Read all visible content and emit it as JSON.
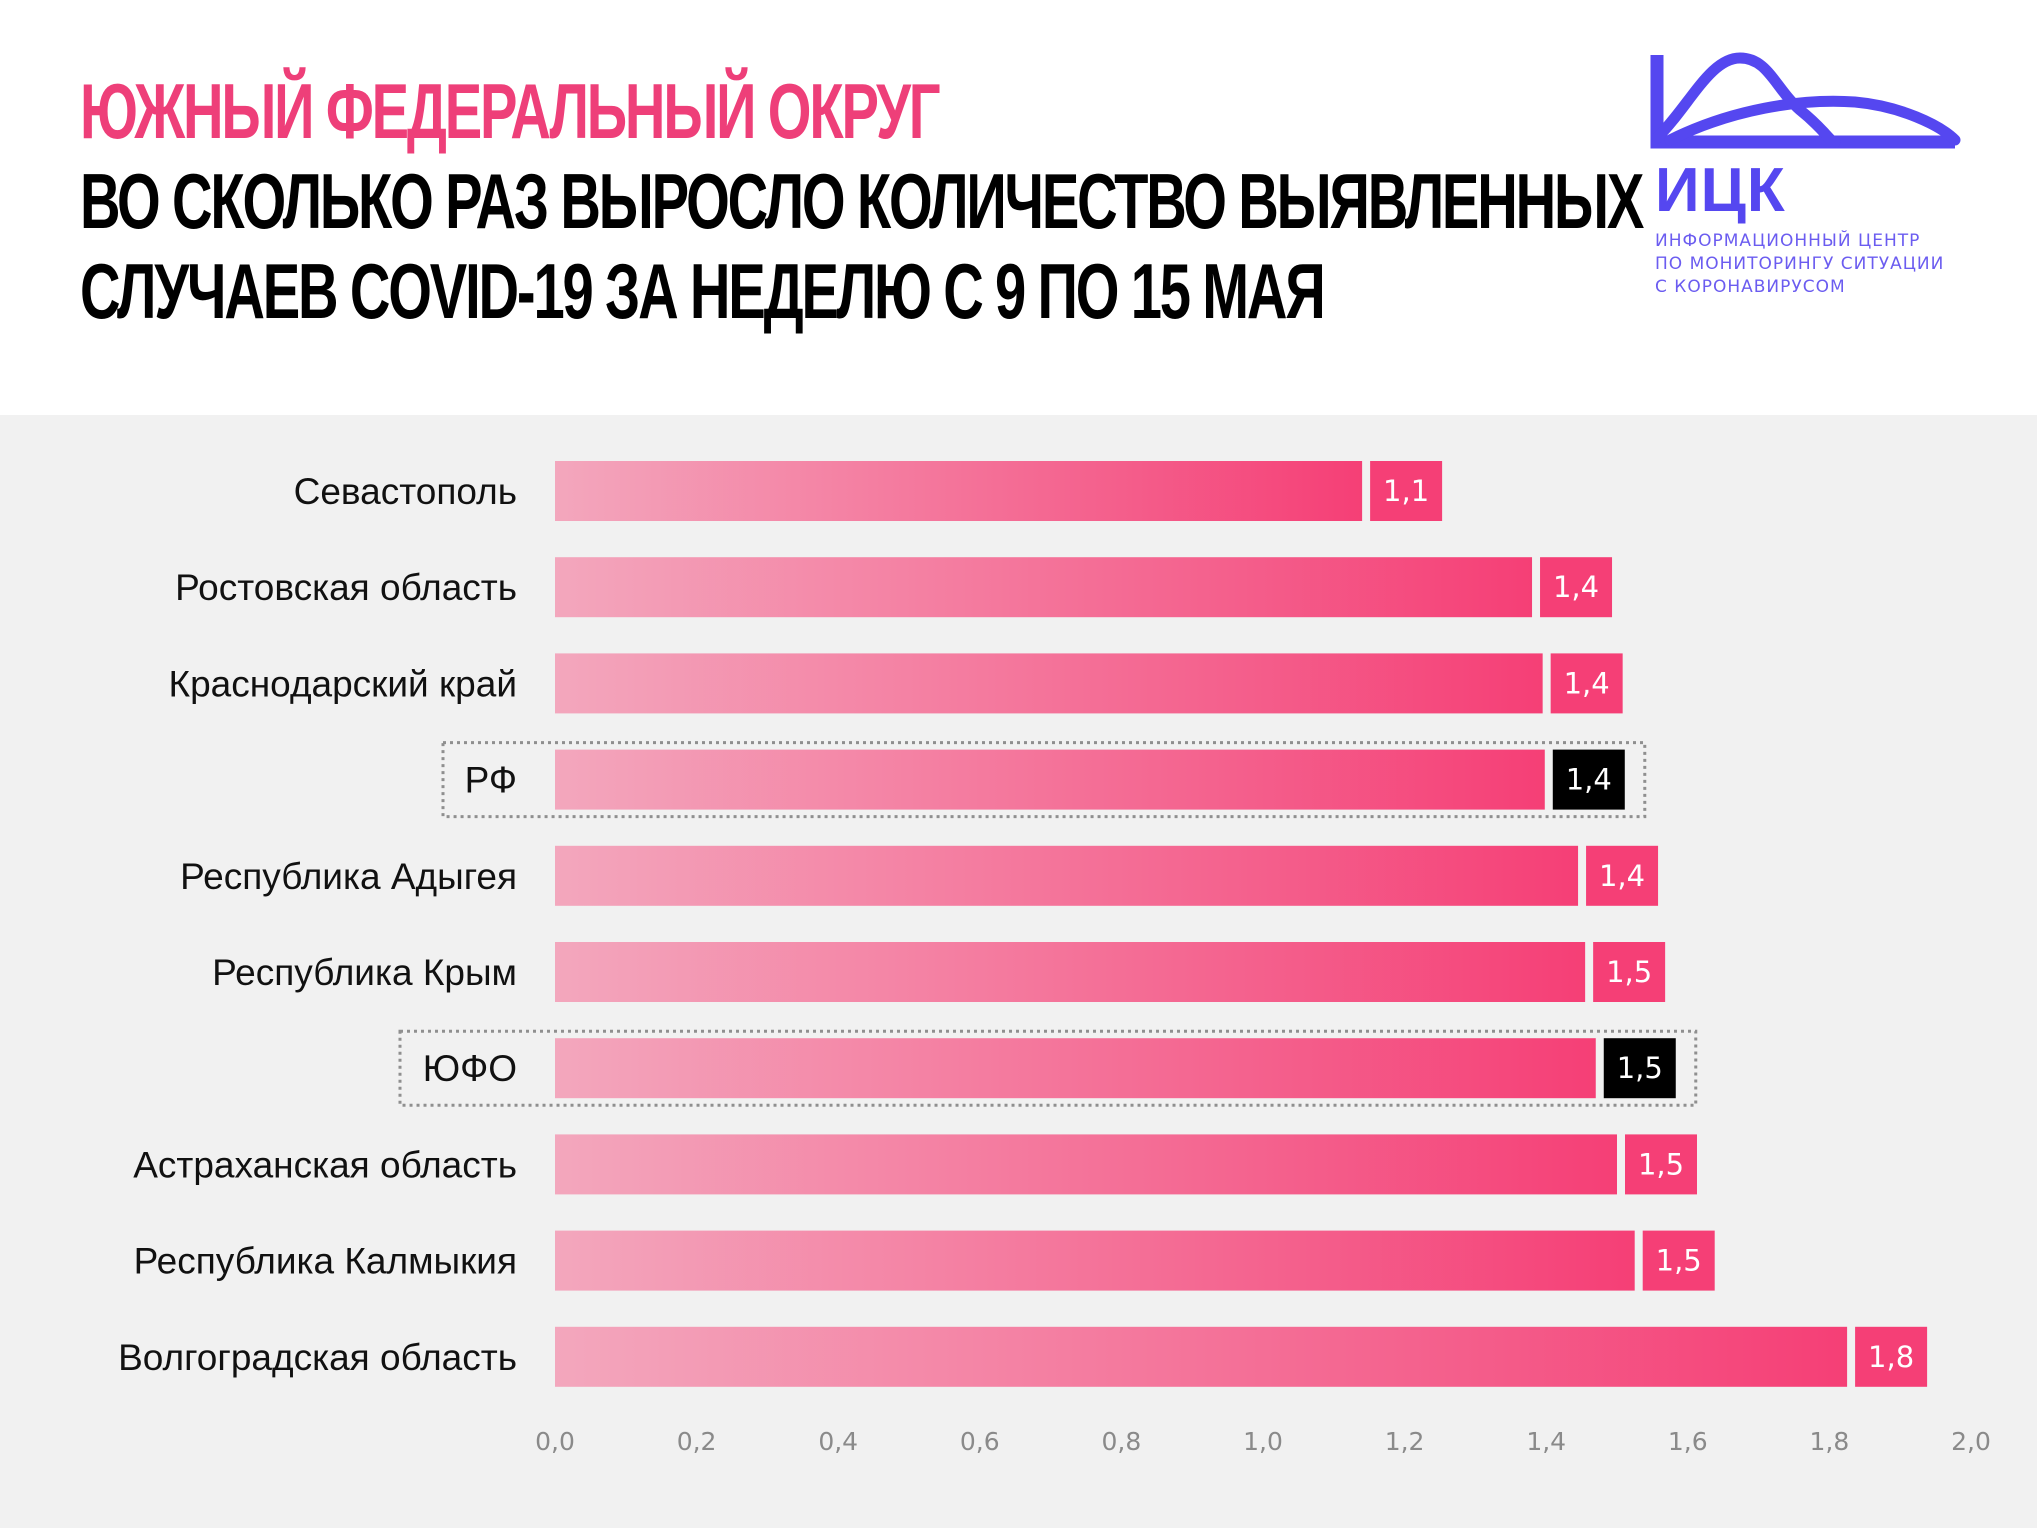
{
  "header": {
    "region_title": "ЮЖНЫЙ ФЕДЕРАЛЬНЫЙ ОКРУГ",
    "title_line1": "ВО СКОЛЬКО РАЗ ВЫРОСЛО КОЛИЧЕСТВО ВЫЯВЛЕННЫХ",
    "title_line2": "СЛУЧАЕВ   COVID-19 ЗА НЕДЕЛЮ С 9 ПО 15 МАЯ"
  },
  "logo": {
    "abbr": "ИЦК",
    "caption_line1": "ИНФОРМАЦИОННЫЙ ЦЕНТР",
    "caption_line2": "ПО МОНИТОРИНГУ СИТУАЦИИ",
    "caption_line3": "С КОРОНАВИРУСОМ",
    "icon": "mountain-wave-logo-icon"
  },
  "colors": {
    "accent_pink": "#ee3f79",
    "bar_start": "#f3a7bd",
    "bar_end": "#f53f76",
    "highlight_badge": "#000000",
    "logo_blue": "#5547f0"
  },
  "chart_data": {
    "type": "bar",
    "orientation": "horizontal",
    "title": "ВО СКОЛЬКО РАЗ ВЫРОСЛО КОЛИЧЕСТВО ВЫЯВЛЕННЫХ СЛУЧАЕВ COVID-19 ЗА НЕДЕЛЮ С 9 ПО 15 МАЯ",
    "categories": [
      "Севастополь",
      "Ростовская область",
      "Краснодарский край",
      "РФ",
      "Республика Адыгея",
      "Республика Крым",
      "ЮФО",
      "Астраханская область",
      "Республика Калмыкия",
      "Волгоградская область"
    ],
    "values": [
      1.14,
      1.38,
      1.395,
      1.398,
      1.445,
      1.455,
      1.47,
      1.5,
      1.525,
      1.825
    ],
    "value_labels": [
      "1,1",
      "1,4",
      "1,4",
      "1,4",
      "1,4",
      "1,5",
      "1,5",
      "1,5",
      "1,5",
      "1,8"
    ],
    "highlighted": [
      "РФ",
      "ЮФО"
    ],
    "xlim": [
      0,
      2.0
    ],
    "x_ticks": [
      "0,0",
      "0,2",
      "0,4",
      "0,6",
      "0,8",
      "1,0",
      "1,2",
      "1,4",
      "1,6",
      "1,8",
      "2,0"
    ],
    "xlabel": "",
    "ylabel": "",
    "grid": false,
    "legend": "none"
  }
}
